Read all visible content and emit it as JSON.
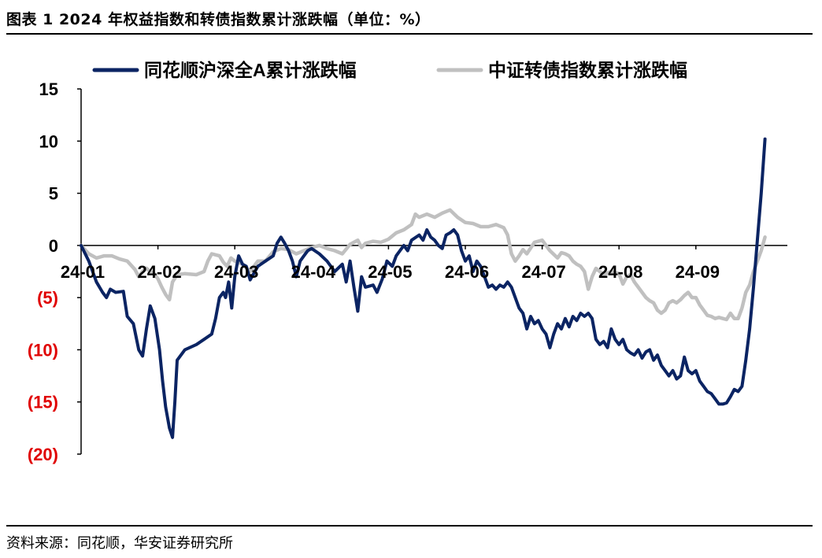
{
  "figure": {
    "title": "图表 1 2024 年权益指数和转债指数累计涨跌幅（单位：%）",
    "source": "资料来源：同花顺，华安证券研究所"
  },
  "colors": {
    "equity": "#0b2463",
    "bond": "#c0c0c0",
    "negative_tick": "#e00000",
    "positive_tick": "#000000"
  },
  "chart_data": {
    "type": "line",
    "title": "",
    "xlabel": "",
    "ylabel": "",
    "ylim": [
      -20,
      15
    ],
    "yticks": [
      15,
      10,
      5,
      0,
      -5,
      -10,
      -15,
      -20
    ],
    "ytick_labels": [
      "15",
      "10",
      "5",
      "0",
      "(5)",
      "(10)",
      "(15)",
      "(20)"
    ],
    "x_unit": "month index (0 = 24-01)",
    "xlim": [
      0,
      9
    ],
    "xticks": [
      0,
      1,
      2,
      3,
      4,
      5,
      6,
      7,
      8
    ],
    "xtick_labels": [
      "24-01",
      "24-02",
      "24-03",
      "24-04",
      "24-05",
      "24-06",
      "24-07",
      "24-08",
      "24-09"
    ],
    "legend_position": "top",
    "grid": false,
    "series": [
      {
        "name": "同花顺沪深全A累计涨跌幅",
        "color": "#0b2463",
        "points": [
          [
            0.0,
            0.0
          ],
          [
            0.1,
            -1.5
          ],
          [
            0.2,
            -3.5
          ],
          [
            0.28,
            -4.5
          ],
          [
            0.33,
            -5.0
          ],
          [
            0.38,
            -4.2
          ],
          [
            0.45,
            -4.5
          ],
          [
            0.55,
            -4.4
          ],
          [
            0.6,
            -6.8
          ],
          [
            0.68,
            -7.5
          ],
          [
            0.75,
            -10.0
          ],
          [
            0.8,
            -10.6
          ],
          [
            0.85,
            -8.0
          ],
          [
            0.9,
            -5.8
          ],
          [
            0.96,
            -7.0
          ],
          [
            1.02,
            -10.0
          ],
          [
            1.06,
            -13.0
          ],
          [
            1.1,
            -15.5
          ],
          [
            1.15,
            -17.5
          ],
          [
            1.19,
            -18.4
          ],
          [
            1.22,
            -15.0
          ],
          [
            1.25,
            -11.0
          ],
          [
            1.35,
            -10.0
          ],
          [
            1.5,
            -9.5
          ],
          [
            1.6,
            -9.0
          ],
          [
            1.7,
            -8.5
          ],
          [
            1.75,
            -7.0
          ],
          [
            1.8,
            -5.0
          ],
          [
            1.85,
            -4.5
          ],
          [
            1.88,
            -5.0
          ],
          [
            1.92,
            -3.5
          ],
          [
            1.96,
            -6.0
          ],
          [
            2.0,
            -3.0
          ],
          [
            2.05,
            -1.0
          ],
          [
            2.1,
            -1.8
          ],
          [
            2.15,
            -2.0
          ],
          [
            2.2,
            -3.3
          ],
          [
            2.3,
            -2.0
          ],
          [
            2.4,
            -1.5
          ],
          [
            2.5,
            -1.0
          ],
          [
            2.55,
            0.2
          ],
          [
            2.6,
            0.8
          ],
          [
            2.65,
            0.2
          ],
          [
            2.7,
            -0.5
          ],
          [
            2.75,
            -1.5
          ],
          [
            2.8,
            -3.0
          ],
          [
            2.85,
            -1.5
          ],
          [
            2.9,
            -1.0
          ],
          [
            2.95,
            -0.5
          ],
          [
            3.0,
            -0.3
          ],
          [
            3.1,
            -0.8
          ],
          [
            3.2,
            -1.5
          ],
          [
            3.3,
            -2.5
          ],
          [
            3.4,
            -1.8
          ],
          [
            3.45,
            -3.5
          ],
          [
            3.5,
            -1.5
          ],
          [
            3.55,
            -4.0
          ],
          [
            3.6,
            -6.3
          ],
          [
            3.65,
            -3.0
          ],
          [
            3.7,
            -4.0
          ],
          [
            3.8,
            -3.8
          ],
          [
            3.85,
            -4.5
          ],
          [
            3.92,
            -3.2
          ],
          [
            3.98,
            -1.5
          ],
          [
            4.05,
            -2.0
          ],
          [
            4.1,
            -1.0
          ],
          [
            4.15,
            -0.5
          ],
          [
            4.2,
            0.0
          ],
          [
            4.25,
            -0.5
          ],
          [
            4.3,
            0.5
          ],
          [
            4.4,
            1.0
          ],
          [
            4.45,
            0.5
          ],
          [
            4.5,
            1.5
          ],
          [
            4.55,
            0.8
          ],
          [
            4.6,
            0.5
          ],
          [
            4.65,
            0.0
          ],
          [
            4.7,
            -0.3
          ],
          [
            4.75,
            1.0
          ],
          [
            4.8,
            1.2
          ],
          [
            4.85,
            1.5
          ],
          [
            4.9,
            1.0
          ],
          [
            4.95,
            -0.5
          ],
          [
            5.0,
            -1.5
          ],
          [
            5.05,
            -1.0
          ],
          [
            5.1,
            -2.5
          ],
          [
            5.15,
            -1.5
          ],
          [
            5.2,
            -2.0
          ],
          [
            5.25,
            -3.0
          ],
          [
            5.3,
            -4.0
          ],
          [
            5.35,
            -3.8
          ],
          [
            5.4,
            -4.2
          ],
          [
            5.45,
            -3.8
          ],
          [
            5.5,
            -4.0
          ],
          [
            5.55,
            -3.5
          ],
          [
            5.6,
            -4.0
          ],
          [
            5.65,
            -5.0
          ],
          [
            5.7,
            -6.0
          ],
          [
            5.75,
            -6.5
          ],
          [
            5.8,
            -8.0
          ],
          [
            5.85,
            -6.8
          ],
          [
            5.9,
            -7.5
          ],
          [
            5.95,
            -7.2
          ],
          [
            6.0,
            -8.0
          ],
          [
            6.05,
            -8.5
          ],
          [
            6.1,
            -9.8
          ],
          [
            6.15,
            -8.5
          ],
          [
            6.2,
            -7.5
          ],
          [
            6.25,
            -8.0
          ],
          [
            6.3,
            -7.0
          ],
          [
            6.35,
            -7.8
          ],
          [
            6.4,
            -6.8
          ],
          [
            6.45,
            -7.2
          ],
          [
            6.5,
            -6.5
          ],
          [
            6.55,
            -6.8
          ],
          [
            6.6,
            -6.5
          ],
          [
            6.65,
            -7.0
          ],
          [
            6.7,
            -9.0
          ],
          [
            6.75,
            -9.5
          ],
          [
            6.8,
            -9.2
          ],
          [
            6.85,
            -9.8
          ],
          [
            6.9,
            -8.0
          ],
          [
            6.95,
            -9.0
          ],
          [
            7.0,
            -9.5
          ],
          [
            7.05,
            -9.0
          ],
          [
            7.1,
            -10.0
          ],
          [
            7.15,
            -10.3
          ],
          [
            7.2,
            -10.5
          ],
          [
            7.25,
            -10.0
          ],
          [
            7.3,
            -10.8
          ],
          [
            7.35,
            -10.2
          ],
          [
            7.4,
            -10.0
          ],
          [
            7.45,
            -11.0
          ],
          [
            7.5,
            -10.5
          ],
          [
            7.55,
            -11.5
          ],
          [
            7.6,
            -12.0
          ],
          [
            7.65,
            -12.5
          ],
          [
            7.7,
            -12.0
          ],
          [
            7.75,
            -12.8
          ],
          [
            7.8,
            -12.5
          ],
          [
            7.85,
            -10.7
          ],
          [
            7.9,
            -12.0
          ],
          [
            7.95,
            -12.3
          ],
          [
            8.0,
            -12.0
          ],
          [
            8.05,
            -13.0
          ],
          [
            8.1,
            -13.5
          ],
          [
            8.15,
            -14.0
          ],
          [
            8.2,
            -14.2
          ],
          [
            8.25,
            -14.7
          ],
          [
            8.3,
            -15.2
          ],
          [
            8.35,
            -15.2
          ],
          [
            8.4,
            -15.1
          ],
          [
            8.45,
            -14.5
          ],
          [
            8.5,
            -13.8
          ],
          [
            8.55,
            -14.0
          ],
          [
            8.6,
            -13.5
          ],
          [
            8.65,
            -11.0
          ],
          [
            8.7,
            -8.0
          ],
          [
            8.75,
            -4.0
          ],
          [
            8.8,
            0.5
          ],
          [
            8.85,
            5.0
          ],
          [
            8.9,
            10.2
          ]
        ]
      },
      {
        "name": "中证转债指数累计涨跌幅",
        "color": "#c0c0c0",
        "points": [
          [
            0.0,
            0.0
          ],
          [
            0.1,
            -0.8
          ],
          [
            0.2,
            -1.2
          ],
          [
            0.3,
            -1.0
          ],
          [
            0.4,
            -1.0
          ],
          [
            0.5,
            -1.3
          ],
          [
            0.6,
            -1.5
          ],
          [
            0.7,
            -2.3
          ],
          [
            0.75,
            -3.0
          ],
          [
            0.8,
            -2.5
          ],
          [
            0.85,
            -2.2
          ],
          [
            0.9,
            -2.5
          ],
          [
            0.95,
            -2.7
          ],
          [
            1.0,
            -3.2
          ],
          [
            1.05,
            -4.0
          ],
          [
            1.1,
            -4.7
          ],
          [
            1.15,
            -5.2
          ],
          [
            1.19,
            -3.5
          ],
          [
            1.25,
            -2.8
          ],
          [
            1.35,
            -2.7
          ],
          [
            1.5,
            -2.8
          ],
          [
            1.6,
            -2.5
          ],
          [
            1.65,
            -1.5
          ],
          [
            1.7,
            -0.8
          ],
          [
            1.8,
            -1.0
          ],
          [
            1.85,
            -1.6
          ],
          [
            1.9,
            -2.0
          ],
          [
            1.95,
            -1.2
          ],
          [
            2.0,
            -1.5
          ],
          [
            2.1,
            -1.8
          ],
          [
            2.2,
            -2.5
          ],
          [
            2.3,
            -1.5
          ],
          [
            2.4,
            -1.5
          ],
          [
            2.5,
            -0.6
          ],
          [
            2.6,
            -0.3
          ],
          [
            2.7,
            -0.4
          ],
          [
            2.8,
            -0.8
          ],
          [
            2.9,
            -0.5
          ],
          [
            3.0,
            -0.2
          ],
          [
            3.1,
            0.0
          ],
          [
            3.2,
            -0.3
          ],
          [
            3.3,
            -0.5
          ],
          [
            3.4,
            -0.8
          ],
          [
            3.5,
            0.1
          ],
          [
            3.6,
            0.5
          ],
          [
            3.65,
            -0.2
          ],
          [
            3.7,
            0.2
          ],
          [
            3.8,
            0.4
          ],
          [
            3.9,
            0.3
          ],
          [
            4.0,
            0.6
          ],
          [
            4.1,
            1.2
          ],
          [
            4.2,
            1.5
          ],
          [
            4.3,
            2.0
          ],
          [
            4.35,
            3.0
          ],
          [
            4.4,
            2.7
          ],
          [
            4.5,
            3.0
          ],
          [
            4.6,
            2.7
          ],
          [
            4.7,
            3.1
          ],
          [
            4.8,
            3.4
          ],
          [
            4.9,
            2.7
          ],
          [
            5.0,
            2.2
          ],
          [
            5.1,
            2.1
          ],
          [
            5.2,
            1.8
          ],
          [
            5.3,
            1.8
          ],
          [
            5.4,
            2.0
          ],
          [
            5.5,
            1.7
          ],
          [
            5.55,
            1.0
          ],
          [
            5.6,
            -0.8
          ],
          [
            5.65,
            -1.5
          ],
          [
            5.7,
            -1.0
          ],
          [
            5.75,
            -0.4
          ],
          [
            5.8,
            -0.8
          ],
          [
            5.9,
            0.3
          ],
          [
            6.0,
            0.5
          ],
          [
            6.1,
            -0.5
          ],
          [
            6.2,
            -1.2
          ],
          [
            6.25,
            -0.7
          ],
          [
            6.3,
            -0.8
          ],
          [
            6.35,
            -1.0
          ],
          [
            6.4,
            -1.5
          ],
          [
            6.45,
            -1.8
          ],
          [
            6.5,
            -2.0
          ],
          [
            6.55,
            -2.5
          ],
          [
            6.6,
            -4.2
          ],
          [
            6.65,
            -3.0
          ],
          [
            6.7,
            -2.2
          ],
          [
            6.8,
            -2.8
          ],
          [
            6.9,
            -2.5
          ],
          [
            7.0,
            -2.7
          ],
          [
            7.05,
            -3.7
          ],
          [
            7.1,
            -3.0
          ],
          [
            7.15,
            -2.8
          ],
          [
            7.2,
            -3.5
          ],
          [
            7.25,
            -4.0
          ],
          [
            7.3,
            -4.5
          ],
          [
            7.35,
            -5.0
          ],
          [
            7.4,
            -5.3
          ],
          [
            7.45,
            -5.5
          ],
          [
            7.5,
            -6.2
          ],
          [
            7.55,
            -6.5
          ],
          [
            7.6,
            -6.2
          ],
          [
            7.65,
            -5.5
          ],
          [
            7.7,
            -5.3
          ],
          [
            7.75,
            -5.5
          ],
          [
            7.8,
            -5.2
          ],
          [
            7.85,
            -4.8
          ],
          [
            7.9,
            -4.5
          ],
          [
            7.95,
            -5.0
          ],
          [
            8.0,
            -5.0
          ],
          [
            8.05,
            -5.7
          ],
          [
            8.1,
            -6.2
          ],
          [
            8.15,
            -6.7
          ],
          [
            8.2,
            -6.8
          ],
          [
            8.25,
            -7.0
          ],
          [
            8.3,
            -6.9
          ],
          [
            8.35,
            -7.0
          ],
          [
            8.4,
            -7.1
          ],
          [
            8.45,
            -6.5
          ],
          [
            8.5,
            -7.0
          ],
          [
            8.55,
            -7.0
          ],
          [
            8.6,
            -6.0
          ],
          [
            8.65,
            -4.5
          ],
          [
            8.7,
            -3.8
          ],
          [
            8.75,
            -2.5
          ],
          [
            8.8,
            -1.5
          ],
          [
            8.85,
            -0.5
          ],
          [
            8.9,
            0.8
          ]
        ]
      }
    ]
  }
}
